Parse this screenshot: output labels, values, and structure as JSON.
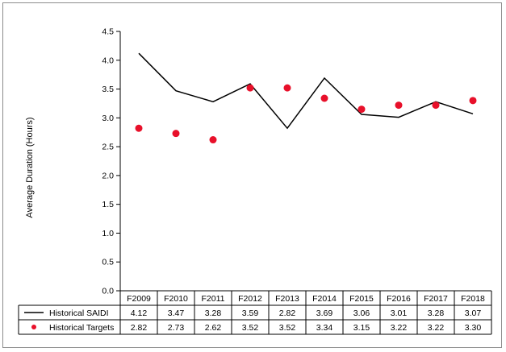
{
  "chart_data": {
    "type": "line",
    "ylabel": "Average Duration (Hours)",
    "xlabel": "",
    "title": "",
    "ylim": [
      0,
      4.5
    ],
    "ytick_step": 0.5,
    "yticks": [
      "0.0",
      "0.5",
      "1.0",
      "1.5",
      "2.0",
      "2.5",
      "3.0",
      "3.5",
      "4.0",
      "4.5"
    ],
    "categories": [
      "F2009",
      "F2010",
      "F2011",
      "F2012",
      "F2013",
      "F2014",
      "F2015",
      "F2016",
      "F2017",
      "F2018"
    ],
    "grid": false,
    "legend_placement": "data-table",
    "series": [
      {
        "name": "Historical SAIDI",
        "style": "line",
        "color": "#000000",
        "values": [
          4.12,
          3.47,
          3.28,
          3.59,
          2.82,
          3.69,
          3.06,
          3.01,
          3.28,
          3.07
        ],
        "labels": [
          "4.12",
          "3.47",
          "3.28",
          "3.59",
          "2.82",
          "3.69",
          "3.06",
          "3.01",
          "3.28",
          "3.07"
        ]
      },
      {
        "name": "Historical Targets",
        "style": "marker",
        "color": "#e8102a",
        "values": [
          2.82,
          2.73,
          2.62,
          3.52,
          3.52,
          3.34,
          3.15,
          3.22,
          3.22,
          3.3
        ],
        "labels": [
          "2.82",
          "2.73",
          "2.62",
          "3.52",
          "3.52",
          "3.34",
          "3.15",
          "3.22",
          "3.22",
          "3.30"
        ]
      }
    ]
  }
}
